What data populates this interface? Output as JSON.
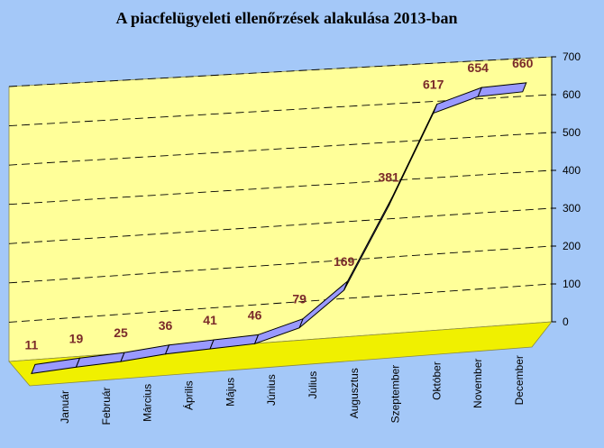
{
  "chart_data": {
    "type": "line",
    "title": "A piacfelügyeleti ellenőrzések alakulása 2013-ban",
    "xlabel": "",
    "ylabel": "",
    "ylim": [
      0,
      700
    ],
    "yticks": [
      0,
      100,
      200,
      300,
      400,
      500,
      600,
      700
    ],
    "grid": true,
    "legend": "none",
    "style": "3d",
    "colors": {
      "background": "#a4c8f8",
      "wall": "#ffff99",
      "floor": "#f0f000",
      "line": "#9999ff",
      "data_label": "#7a2a2a"
    },
    "categories": [
      "Január",
      "Február",
      "Március",
      "Április",
      "Május",
      "Június",
      "Július",
      "Augusztus",
      "Szeptember",
      "Október",
      "November",
      "December"
    ],
    "values": [
      11,
      19,
      25,
      36,
      41,
      46,
      79,
      169,
      381,
      617,
      654,
      660
    ]
  }
}
